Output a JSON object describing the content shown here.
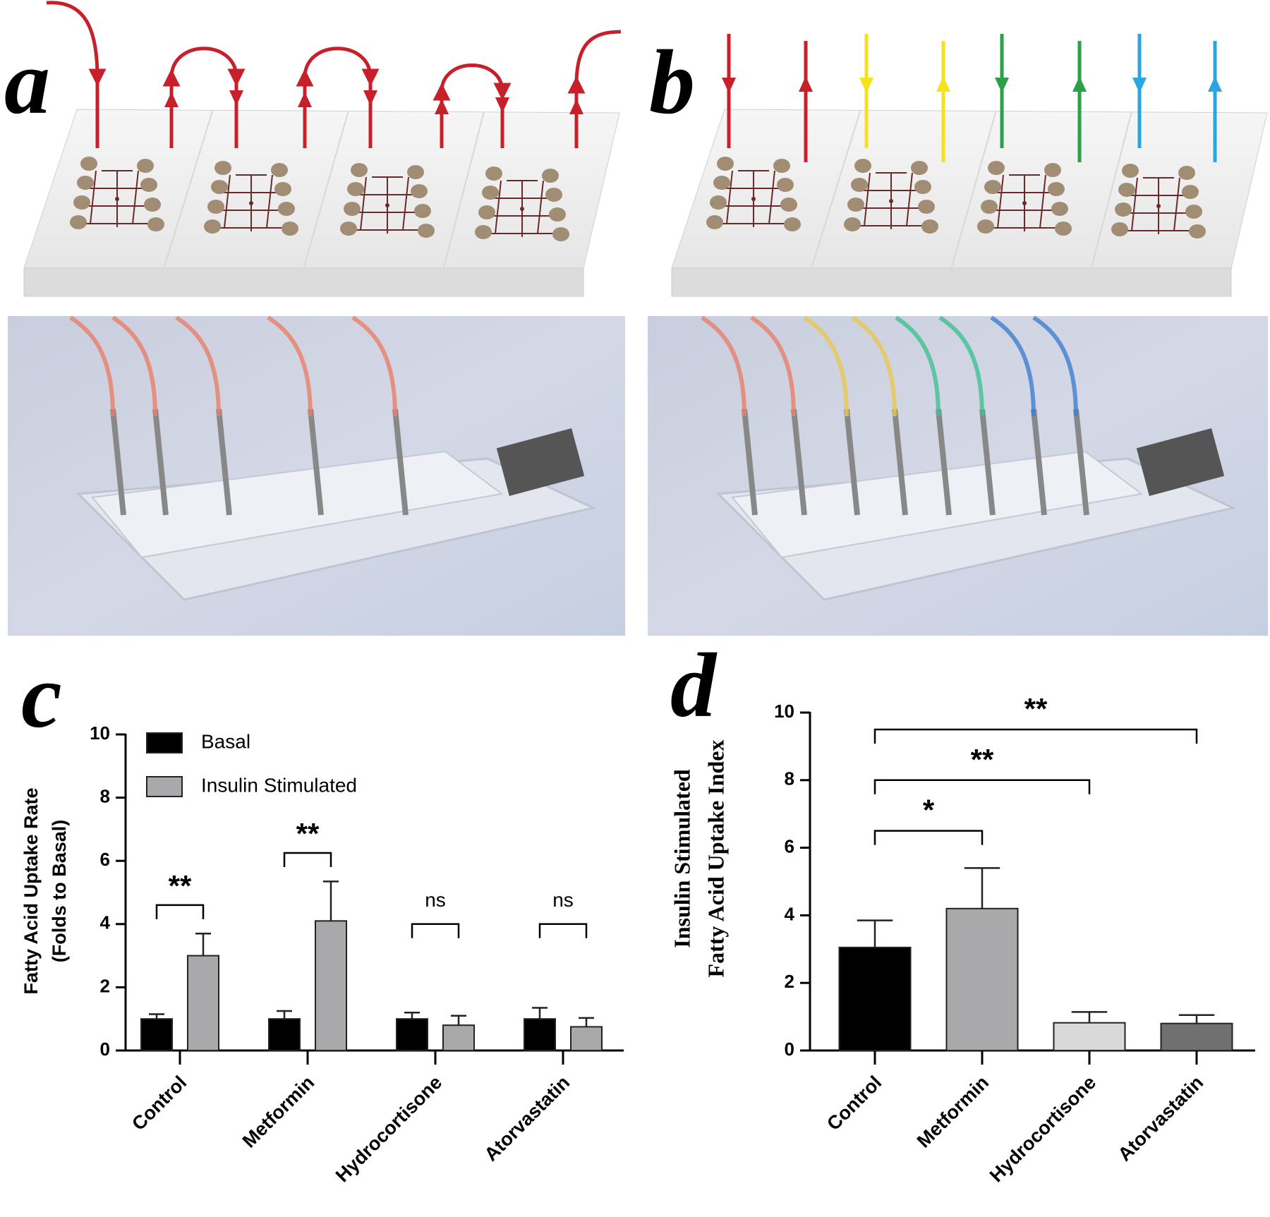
{
  "figure_panels": [
    "a",
    "b"
  ],
  "chart_data": [
    {
      "type": "bar",
      "panel": "c",
      "ylabel": [
        "Fatty Acid Uptake Rate",
        "(Folds to Basal)"
      ],
      "categories": [
        "Control",
        "Metformin",
        "Hydrocortisone",
        "Atorvastatin"
      ],
      "series": [
        {
          "name": "Basal",
          "color": "#000000",
          "values": [
            1,
            1,
            1,
            1
          ],
          "errors": [
            0.15,
            0.25,
            0.2,
            0.35
          ]
        },
        {
          "name": "Insulin Stimulated",
          "color": "#a9a9ab",
          "values": [
            3.0,
            4.1,
            0.8,
            0.75
          ],
          "errors": [
            0.7,
            1.25,
            0.3,
            0.28
          ]
        }
      ],
      "significance": [
        "**",
        "**",
        "ns",
        "ns"
      ],
      "ylim": [
        0,
        10
      ],
      "yticks": [
        0,
        2,
        4,
        6,
        8,
        10
      ],
      "legend": "upper left"
    },
    {
      "type": "bar",
      "panel": "d",
      "ylabel": [
        "Insulin Stimulated",
        "Fatty Acid Uptake Index"
      ],
      "categories": [
        "Control",
        "Metformin",
        "Hydrocortisone",
        "Atorvastatin"
      ],
      "values": [
        3.05,
        4.2,
        0.82,
        0.8
      ],
      "errors": [
        0.8,
        1.2,
        0.32,
        0.25
      ],
      "colors": [
        "#000000",
        "#a9a9ab",
        "#d9d9d9",
        "#707070"
      ],
      "comparisons": [
        {
          "groups": [
            "Control",
            "Metformin"
          ],
          "label": "*"
        },
        {
          "groups": [
            "Control",
            "Hydrocortisone"
          ],
          "label": "**"
        },
        {
          "groups": [
            "Control",
            "Atorvastatin"
          ],
          "label": "**"
        }
      ],
      "ylim": [
        0,
        10
      ],
      "yticks": [
        0,
        2,
        4,
        6,
        8,
        10
      ]
    }
  ]
}
